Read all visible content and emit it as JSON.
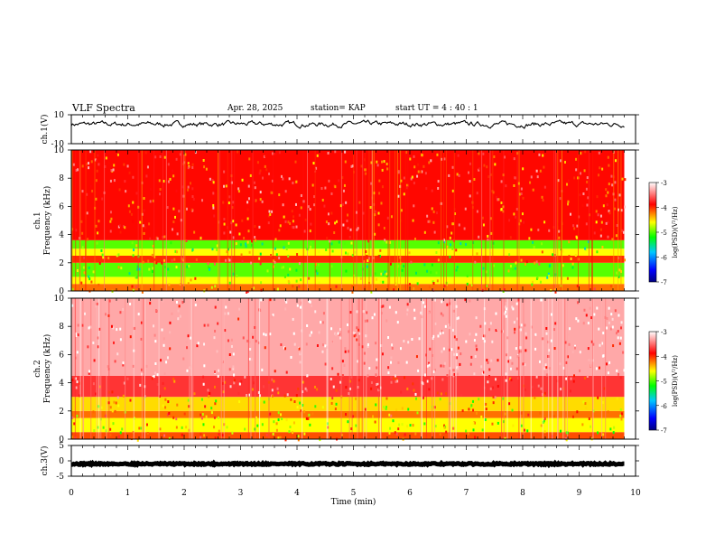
{
  "header": {
    "title": "VLF Spectra",
    "date": "Apr. 28, 2025",
    "station": "station= KAP",
    "start": "start  UT =   4 : 40 : 1"
  },
  "chart_data": [
    {
      "type": "line",
      "panel": "ch1-waveform",
      "ylabel": "ch.1(V)",
      "ylim": [
        -10,
        10
      ],
      "yticks": [
        "10",
        "-10"
      ],
      "xlim": [
        0,
        10
      ],
      "baseline_v": 3.5,
      "note_values": "noisy waveform; y mostly between 0 and 7 V"
    },
    {
      "type": "heatmap",
      "panel": "ch1-spectrogram",
      "ylabel": "ch.1\nFrequency (kHz)",
      "ylabel_line1": "ch.1",
      "ylabel_line2": "Frequency (kHz)",
      "ylim": [
        0,
        10
      ],
      "yticks": [
        "0",
        "2",
        "4",
        "6",
        "8",
        "10"
      ],
      "xlim": [
        0,
        10
      ],
      "bands": [
        {
          "f0": 0.0,
          "f1": 0.5,
          "level": -4.2
        },
        {
          "f0": 0.5,
          "f1": 1.0,
          "level": -4.6
        },
        {
          "f0": 1.0,
          "f1": 2.0,
          "level": -5.0
        },
        {
          "f0": 2.0,
          "f1": 2.5,
          "level": -4.0
        },
        {
          "f0": 2.5,
          "f1": 3.0,
          "level": -4.6
        },
        {
          "f0": 3.0,
          "f1": 3.6,
          "level": -5.0
        },
        {
          "f0": 3.6,
          "f1": 10.0,
          "level": -3.9
        }
      ]
    },
    {
      "type": "heatmap",
      "panel": "ch2-spectrogram",
      "ylabel_line1": "ch.2",
      "ylabel_line2": "Frequency (kHz)",
      "ylim": [
        0,
        10
      ],
      "yticks": [
        "0",
        "2",
        "4",
        "6",
        "8",
        "10"
      ],
      "xlim": [
        0,
        10
      ],
      "bands": [
        {
          "f0": 0.0,
          "f1": 0.5,
          "level": -4.1
        },
        {
          "f0": 0.5,
          "f1": 1.5,
          "level": -4.6
        },
        {
          "f0": 1.5,
          "f1": 2.0,
          "level": -4.2
        },
        {
          "f0": 2.0,
          "f1": 3.0,
          "level": -4.5
        },
        {
          "f0": 3.0,
          "f1": 4.5,
          "level": -3.7
        },
        {
          "f0": 4.5,
          "f1": 10.0,
          "level": -3.3
        }
      ]
    },
    {
      "type": "line",
      "panel": "ch3-waveform",
      "ylabel": "ch.3(V)",
      "ylim": [
        -5,
        5
      ],
      "yticks": [
        "5",
        "0",
        "-5"
      ],
      "xlim": [
        0,
        10
      ],
      "baseline_v": -1.0,
      "note_values": "thick constant trace near -1 V"
    },
    {
      "type": "axis",
      "xlabel": "Time (min)",
      "xticks": [
        "0",
        "1",
        "2",
        "3",
        "4",
        "5",
        "6",
        "7",
        "8",
        "9",
        "10"
      ],
      "data_end_min": 9.8
    },
    {
      "type": "colorbar",
      "label": "log(PSD)(V²/Hz)",
      "ticks": [
        "-3",
        "-4",
        "-5",
        "-6",
        "-7"
      ],
      "range": [
        -7,
        -3
      ],
      "colors": [
        "#000080",
        "#0000ff",
        "#00c8ff",
        "#00ff00",
        "#ffff00",
        "#ff0000",
        "#ffffff"
      ]
    }
  ]
}
